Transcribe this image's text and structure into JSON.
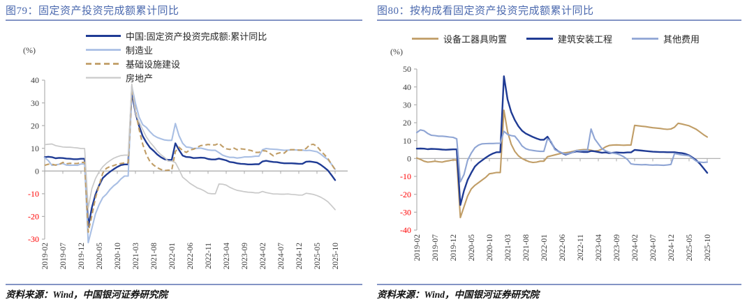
{
  "page": {
    "background": "#ffffff"
  },
  "accent_colors": {
    "title_blue": "#4a68ae",
    "rule_blue": "#8394c5",
    "negative_tick_red": "#ff0000",
    "axis_gray": "#b0b0b0",
    "zero_line_gray": "#a8a8a8",
    "tick_text": "#3d3d3d"
  },
  "chart_data": [
    {
      "key": "figure-79",
      "type": "line",
      "title": "图79：固定资产投资完成额累计同比",
      "unit": "(%)",
      "source": "资料来源：Wind，中国银河证券研究院",
      "ylim": [
        -30,
        40
      ],
      "yticks": [
        40,
        30,
        20,
        10,
        0,
        -10,
        -20,
        -30
      ],
      "grid": false,
      "legend_position": "top-left-vertical",
      "x_range": "2019-02 to 2025-10, monthly",
      "x_tick_labels": [
        "2019-02",
        "2019-07",
        "2019-12",
        "2020-05",
        "2020-10",
        "2021-03",
        "2021-08",
        "2022-01",
        "2022-06",
        "2022-11",
        "2023-04",
        "2023-09",
        "2024-02",
        "2024-07",
        "2024-12",
        "2025-05",
        "2025-10"
      ],
      "series": [
        {
          "key": "fai-total",
          "name": "中国:固定资产投资完成额:累计同比",
          "color": "#1f3b94",
          "width": 2.4,
          "dash": null,
          "values": [
            6.1,
            6.3,
            6.1,
            5.6,
            5.8,
            5.7,
            5.5,
            5.4,
            5.2,
            5.2,
            5.4,
            5.4,
            -24.5,
            -16.1,
            -10.3,
            -6.3,
            -3.1,
            -1.6,
            -0.3,
            0.8,
            1.8,
            2.6,
            2.9,
            2.9,
            35.0,
            25.6,
            19.9,
            15.4,
            12.6,
            10.3,
            8.9,
            7.3,
            6.1,
            5.2,
            4.9,
            4.9,
            12.2,
            9.3,
            6.8,
            6.2,
            6.1,
            5.7,
            5.8,
            5.9,
            5.8,
            5.3,
            5.1,
            5.1,
            5.5,
            5.1,
            4.7,
            4.0,
            3.8,
            3.4,
            3.2,
            3.1,
            2.9,
            2.9,
            3.0,
            3.0,
            4.2,
            4.5,
            4.2,
            4.0,
            3.9,
            3.6,
            3.4,
            3.4,
            3.4,
            3.3,
            3.2,
            3.2,
            4.1,
            4.2,
            4.0,
            3.7,
            2.8,
            1.6,
            0.3,
            -1.8,
            -4.0
          ]
        },
        {
          "key": "manufacturing",
          "name": "制造业",
          "color": "#a9bfe4",
          "width": 2.1,
          "dash": null,
          "values": [
            5.9,
            4.6,
            2.5,
            2.7,
            3.0,
            3.3,
            2.6,
            2.5,
            2.6,
            2.5,
            3.1,
            3.1,
            -31.5,
            -25.2,
            -18.8,
            -14.8,
            -11.7,
            -10.2,
            -8.1,
            -6.5,
            -5.3,
            -3.5,
            -2.2,
            -2.2,
            37.3,
            29.8,
            23.8,
            20.4,
            19.2,
            17.3,
            15.7,
            14.8,
            14.2,
            13.7,
            13.5,
            13.5,
            20.9,
            15.6,
            12.2,
            10.6,
            10.4,
            9.9,
            10.0,
            10.1,
            9.7,
            9.3,
            9.1,
            9.1,
            8.1,
            7.0,
            6.4,
            6.0,
            6.0,
            5.7,
            5.9,
            6.2,
            6.2,
            6.3,
            6.5,
            6.5,
            9.4,
            9.9,
            9.7,
            9.6,
            9.5,
            9.3,
            9.1,
            9.2,
            9.3,
            9.3,
            9.2,
            9.2,
            9.0,
            9.1,
            8.8,
            8.5,
            7.5,
            6.2,
            5.1,
            3.0,
            0.8
          ]
        },
        {
          "key": "infrastructure",
          "name": "基础设施建设",
          "color": "#c09d66",
          "width": 2.1,
          "dash": "7 4",
          "values": [
            2.5,
            3.0,
            3.0,
            2.6,
            2.9,
            3.8,
            3.2,
            3.4,
            3.3,
            3.3,
            3.8,
            3.8,
            -26.9,
            -19.6,
            -11.8,
            -6.3,
            -0.9,
            1.2,
            2.0,
            2.4,
            3.0,
            3.3,
            3.6,
            3.6,
            36.3,
            26.8,
            18.4,
            11.8,
            7.2,
            4.2,
            2.6,
            1.5,
            0.7,
            0.2,
            0.4,
            0.4,
            8.6,
            10.5,
            9.0,
            8.2,
            9.3,
            9.6,
            10.4,
            11.2,
            11.4,
            11.7,
            11.5,
            11.5,
            12.2,
            10.8,
            9.8,
            9.5,
            10.2,
            9.4,
            9.8,
            9.6,
            9.3,
            9.0,
            8.2,
            8.2,
            9.0,
            8.8,
            7.8,
            6.7,
            7.7,
            8.1,
            7.9,
            9.3,
            9.4,
            9.4,
            9.2,
            9.2,
            9.9,
            11.5,
            11.8,
            10.9,
            8.9,
            7.3,
            5.5,
            3.0,
            0.6
          ]
        },
        {
          "key": "real-estate",
          "name": "房地产",
          "color": "#c9c9c9",
          "width": 1.7,
          "dash": null,
          "values": [
            11.6,
            11.8,
            11.9,
            11.2,
            10.9,
            10.6,
            10.5,
            10.5,
            10.3,
            10.2,
            9.9,
            9.9,
            -16.3,
            -7.7,
            -3.3,
            -0.3,
            1.9,
            3.4,
            4.6,
            5.6,
            6.3,
            6.8,
            7.0,
            7.0,
            38.3,
            25.6,
            21.6,
            18.3,
            15.0,
            12.7,
            10.9,
            8.8,
            7.2,
            6.0,
            4.4,
            4.4,
            3.7,
            0.7,
            -2.7,
            -4.0,
            -5.4,
            -6.4,
            -7.4,
            -8.0,
            -8.8,
            -9.8,
            -10.0,
            -10.0,
            -5.7,
            -5.8,
            -6.2,
            -7.2,
            -7.9,
            -8.5,
            -8.8,
            -9.1,
            -9.3,
            -9.4,
            -9.6,
            -9.6,
            -9.0,
            -9.5,
            -9.8,
            -10.1,
            -10.1,
            -10.2,
            -10.2,
            -10.1,
            -10.3,
            -10.4,
            -10.6,
            -10.6,
            -9.8,
            -10.0,
            -10.3,
            -10.8,
            -11.5,
            -12.4,
            -13.5,
            -15.2,
            -17.0
          ]
        }
      ]
    },
    {
      "key": "figure-80",
      "type": "line",
      "title": "图80：按构成看固定资产投资完成额累计同比",
      "unit": "(%)",
      "source": "资料来源：Wind，中国银河证券研究院",
      "ylim": [
        -40,
        50
      ],
      "yticks": [
        50,
        40,
        30,
        20,
        10,
        0,
        -10,
        -20,
        -30,
        -40
      ],
      "grid": false,
      "legend_position": "top-horizontal",
      "x_range": "2019-02 to 2025-10, monthly",
      "x_tick_labels": [
        "2019-02",
        "2019-07",
        "2019-12",
        "2020-05",
        "2020-10",
        "2021-03",
        "2021-08",
        "2022-01",
        "2022-06",
        "2022-11",
        "2023-04",
        "2023-09",
        "2024-02",
        "2024-07",
        "2024-12",
        "2025-05",
        "2025-10"
      ],
      "series": [
        {
          "key": "equipment-purchase",
          "name": "设备工器具购置",
          "color": "#c09d66",
          "width": 2.1,
          "dash": null,
          "values": [
            0.3,
            -0.5,
            -1.5,
            -2.0,
            -1.8,
            -1.5,
            -1.8,
            -2.0,
            -1.5,
            -1.2,
            -0.8,
            -0.8,
            -33.0,
            -27.0,
            -21.0,
            -17.0,
            -15.0,
            -13.5,
            -12.0,
            -10.5,
            -8.5,
            -8.2,
            -7.8,
            -7.8,
            27.0,
            15.0,
            8.0,
            4.0,
            1.5,
            0.0,
            -1.0,
            -1.8,
            -2.2,
            -2.0,
            -1.5,
            -1.5,
            1.0,
            1.5,
            2.0,
            2.5,
            3.0,
            3.2,
            3.5,
            4.0,
            4.5,
            4.8,
            5.0,
            5.0,
            4.6,
            4.2,
            4.4,
            5.2,
            6.5,
            7.3,
            7.5,
            7.6,
            7.5,
            7.4,
            7.5,
            7.5,
            18.5,
            18.3,
            18.0,
            17.8,
            17.5,
            17.2,
            17.0,
            16.8,
            16.5,
            16.3,
            16.5,
            17.5,
            19.7,
            19.3,
            18.8,
            18.3,
            17.3,
            16.3,
            14.8,
            13.3,
            12.0
          ]
        },
        {
          "key": "construction-installation",
          "name": "建筑安装工程",
          "color": "#1f3b94",
          "width": 2.4,
          "dash": null,
          "values": [
            5.5,
            5.6,
            5.5,
            5.2,
            5.4,
            5.3,
            5.2,
            5.0,
            4.9,
            5.0,
            5.1,
            5.1,
            -26.0,
            -18.0,
            -12.0,
            -8.0,
            -4.5,
            -2.5,
            -1.0,
            0.5,
            1.8,
            2.8,
            3.5,
            3.5,
            46.0,
            33.0,
            26.0,
            21.5,
            18.0,
            15.5,
            14.0,
            13.0,
            12.0,
            11.2,
            10.5,
            10.5,
            12.2,
            9.0,
            5.5,
            4.0,
            3.0,
            2.2,
            2.8,
            3.5,
            4.0,
            3.8,
            3.6,
            3.6,
            4.2,
            4.0,
            3.6,
            3.2,
            3.4,
            3.0,
            3.2,
            3.4,
            3.3,
            3.2,
            3.4,
            3.4,
            4.8,
            4.6,
            4.4,
            4.2,
            4.0,
            3.8,
            3.7,
            3.6,
            3.6,
            3.5,
            3.5,
            3.5,
            3.2,
            3.0,
            2.6,
            1.8,
            0.5,
            -1.0,
            -3.0,
            -5.5,
            -8.0
          ]
        },
        {
          "key": "other-fees",
          "name": "其他费用",
          "color": "#8fa5d4",
          "width": 2.1,
          "dash": null,
          "values": [
            14.5,
            16.0,
            15.5,
            14.0,
            13.0,
            12.8,
            12.5,
            12.5,
            12.3,
            12.0,
            11.8,
            11.0,
            -13.0,
            -9.0,
            -1.0,
            3.0,
            6.0,
            7.5,
            8.2,
            8.3,
            8.4,
            8.4,
            8.5,
            8.5,
            15.2,
            13.5,
            12.8,
            12.5,
            10.0,
            7.0,
            5.5,
            4.8,
            4.5,
            4.2,
            4.0,
            4.0,
            11.0,
            9.5,
            5.0,
            4.0,
            3.0,
            2.5,
            2.8,
            3.5,
            4.5,
            4.3,
            4.5,
            4.5,
            16.5,
            11.0,
            8.2,
            5.5,
            4.3,
            3.5,
            3.0,
            2.7,
            2.0,
            1.0,
            -0.5,
            -3.0,
            -3.3,
            -3.4,
            -3.5,
            -3.4,
            -3.6,
            -3.7,
            -3.6,
            -3.7,
            -3.8,
            -3.6,
            -3.3,
            2.8,
            2.4,
            2.0,
            1.8,
            1.5,
            0.0,
            -1.5,
            -2.0,
            -2.2,
            -2.0
          ]
        }
      ]
    }
  ]
}
